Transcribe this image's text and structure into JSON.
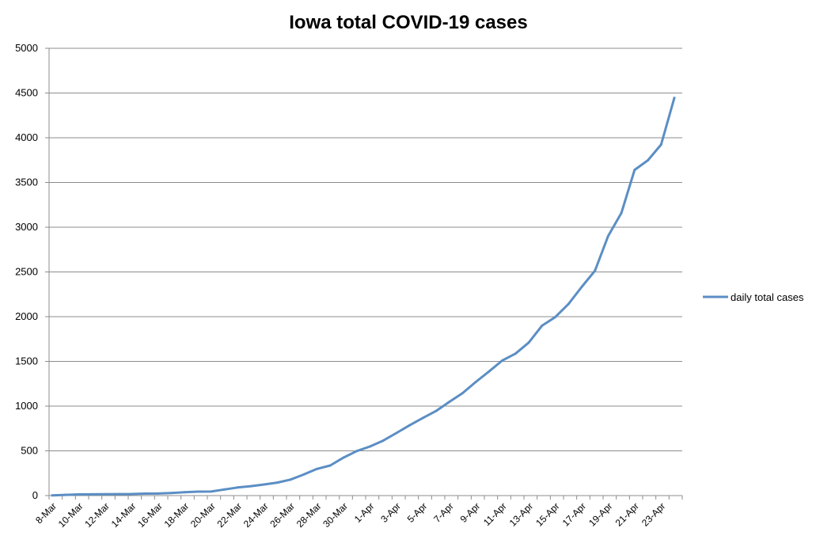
{
  "chart_data": {
    "type": "line",
    "title": "Iowa total COVID-19 cases",
    "xlabel": "",
    "ylabel": "",
    "ylim": [
      0,
      5000
    ],
    "yticks": [
      0,
      500,
      1000,
      1500,
      2000,
      2500,
      3000,
      3500,
      4000,
      4500,
      5000
    ],
    "grid": true,
    "legend": "right",
    "x_tick_labels": [
      "8-Mar",
      "10-Mar",
      "12-Mar",
      "14-Mar",
      "16-Mar",
      "18-Mar",
      "20-Mar",
      "22-Mar",
      "24-Mar",
      "26-Mar",
      "28-Mar",
      "30-Mar",
      "1-Apr",
      "3-Apr",
      "5-Apr",
      "7-Apr",
      "9-Apr",
      "11-Apr",
      "13-Apr",
      "15-Apr",
      "17-Apr",
      "19-Apr",
      "21-Apr",
      "23-Apr"
    ],
    "x": [
      "8-Mar",
      "9-Mar",
      "10-Mar",
      "11-Mar",
      "12-Mar",
      "13-Mar",
      "14-Mar",
      "15-Mar",
      "16-Mar",
      "17-Mar",
      "18-Mar",
      "19-Mar",
      "20-Mar",
      "21-Mar",
      "22-Mar",
      "23-Mar",
      "24-Mar",
      "25-Mar",
      "26-Mar",
      "27-Mar",
      "28-Mar",
      "29-Mar",
      "30-Mar",
      "31-Mar",
      "1-Apr",
      "2-Apr",
      "3-Apr",
      "4-Apr",
      "5-Apr",
      "6-Apr",
      "7-Apr",
      "8-Apr",
      "9-Apr",
      "10-Apr",
      "11-Apr",
      "12-Apr",
      "13-Apr",
      "14-Apr",
      "15-Apr",
      "16-Apr",
      "17-Apr",
      "18-Apr",
      "19-Apr",
      "20-Apr",
      "21-Apr",
      "22-Apr",
      "23-Apr",
      "24-Apr"
    ],
    "series": [
      {
        "name": "daily total cases",
        "color": "#5b8ec4",
        "values": [
          3,
          8,
          13,
          14,
          16,
          17,
          18,
          22,
          23,
          29,
          38,
          44,
          45,
          68,
          90,
          105,
          124,
          145,
          179,
          235,
          298,
          336,
          424,
          497,
          549,
          614,
          699,
          786,
          868,
          946,
          1048,
          1145,
          1270,
          1388,
          1510,
          1587,
          1710,
          1899,
          1995,
          2141,
          2332,
          2513,
          2902,
          3159,
          3641,
          3748,
          3924,
          4445
        ]
      }
    ]
  }
}
